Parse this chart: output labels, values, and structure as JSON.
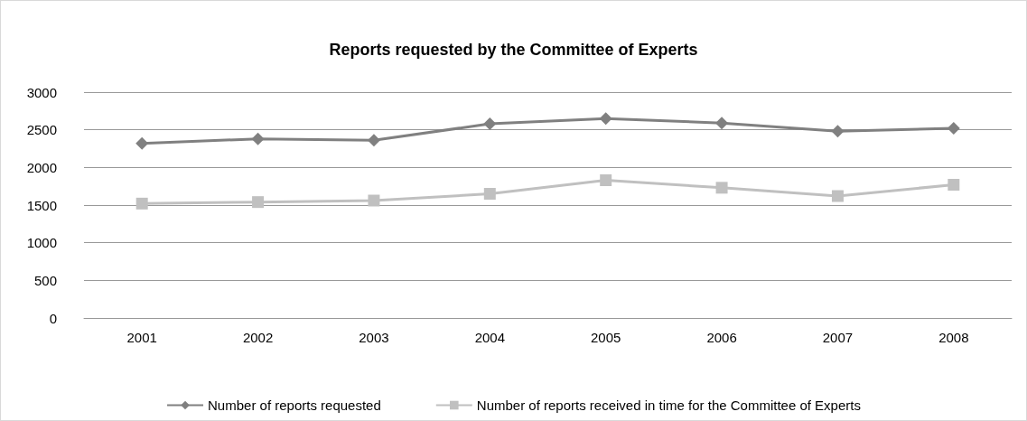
{
  "chart_data": {
    "type": "line",
    "title": "Reports requested by the Committee of Experts",
    "categories": [
      "2001",
      "2002",
      "2003",
      "2004",
      "2005",
      "2006",
      "2007",
      "2008"
    ],
    "series": [
      {
        "name": "Number of reports requested",
        "color": "#808080",
        "marker": "diamond",
        "values": [
          2320,
          2380,
          2360,
          2580,
          2650,
          2590,
          2480,
          2520
        ]
      },
      {
        "name": "Number of reports received in time for the Committee of Experts",
        "color": "#c0c0c0",
        "marker": "square",
        "values": [
          1520,
          1540,
          1560,
          1650,
          1830,
          1730,
          1620,
          1770
        ]
      }
    ],
    "ylim": [
      0,
      3000
    ],
    "yticks": [
      0,
      500,
      1000,
      1500,
      2000,
      2500,
      3000
    ],
    "grid": "y",
    "legend": "bottom"
  }
}
